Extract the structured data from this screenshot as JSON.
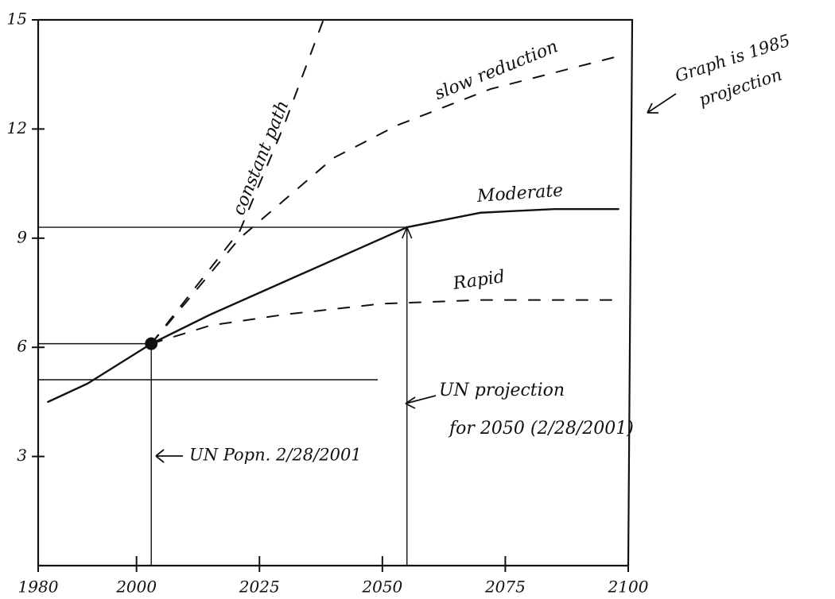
{
  "chart_data": {
    "type": "line",
    "xlim": [
      1980,
      2100
    ],
    "ylim": [
      0,
      15
    ],
    "xticks": [
      1980,
      2000,
      2025,
      2050,
      2075,
      2100
    ],
    "yticks": [
      3,
      6,
      9,
      12,
      15
    ],
    "color": "#111111",
    "series": [
      {
        "name": "Moderate",
        "style": "solid",
        "x": [
          1982,
          1990,
          2003,
          2015,
          2030,
          2045,
          2055,
          2070,
          2085,
          2098
        ],
        "values": [
          4.5,
          5.0,
          6.1,
          6.9,
          7.8,
          8.7,
          9.3,
          9.7,
          9.8,
          9.8
        ]
      },
      {
        "name": "Rapid",
        "style": "dashed",
        "x": [
          2003,
          2015,
          2030,
          2050,
          2070,
          2098
        ],
        "values": [
          6.1,
          6.6,
          6.9,
          7.2,
          7.3,
          7.3
        ]
      },
      {
        "name": "slow reduction",
        "style": "dashed",
        "x": [
          2003,
          2021,
          2040,
          2053,
          2072,
          2098
        ],
        "values": [
          6.1,
          9.0,
          11.2,
          12.1,
          13.1,
          14.0
        ]
      },
      {
        "name": "constant path",
        "style": "dashed",
        "x": [
          2003,
          2021,
          2030,
          2038
        ],
        "values": [
          6.1,
          9.2,
          12.1,
          15.0
        ]
      }
    ],
    "annotations": [
      "Graph is 1985",
      "projection",
      "UN projection",
      "for 2050 (2/28/2001)",
      "UN Popn. 2/28/2001"
    ]
  }
}
